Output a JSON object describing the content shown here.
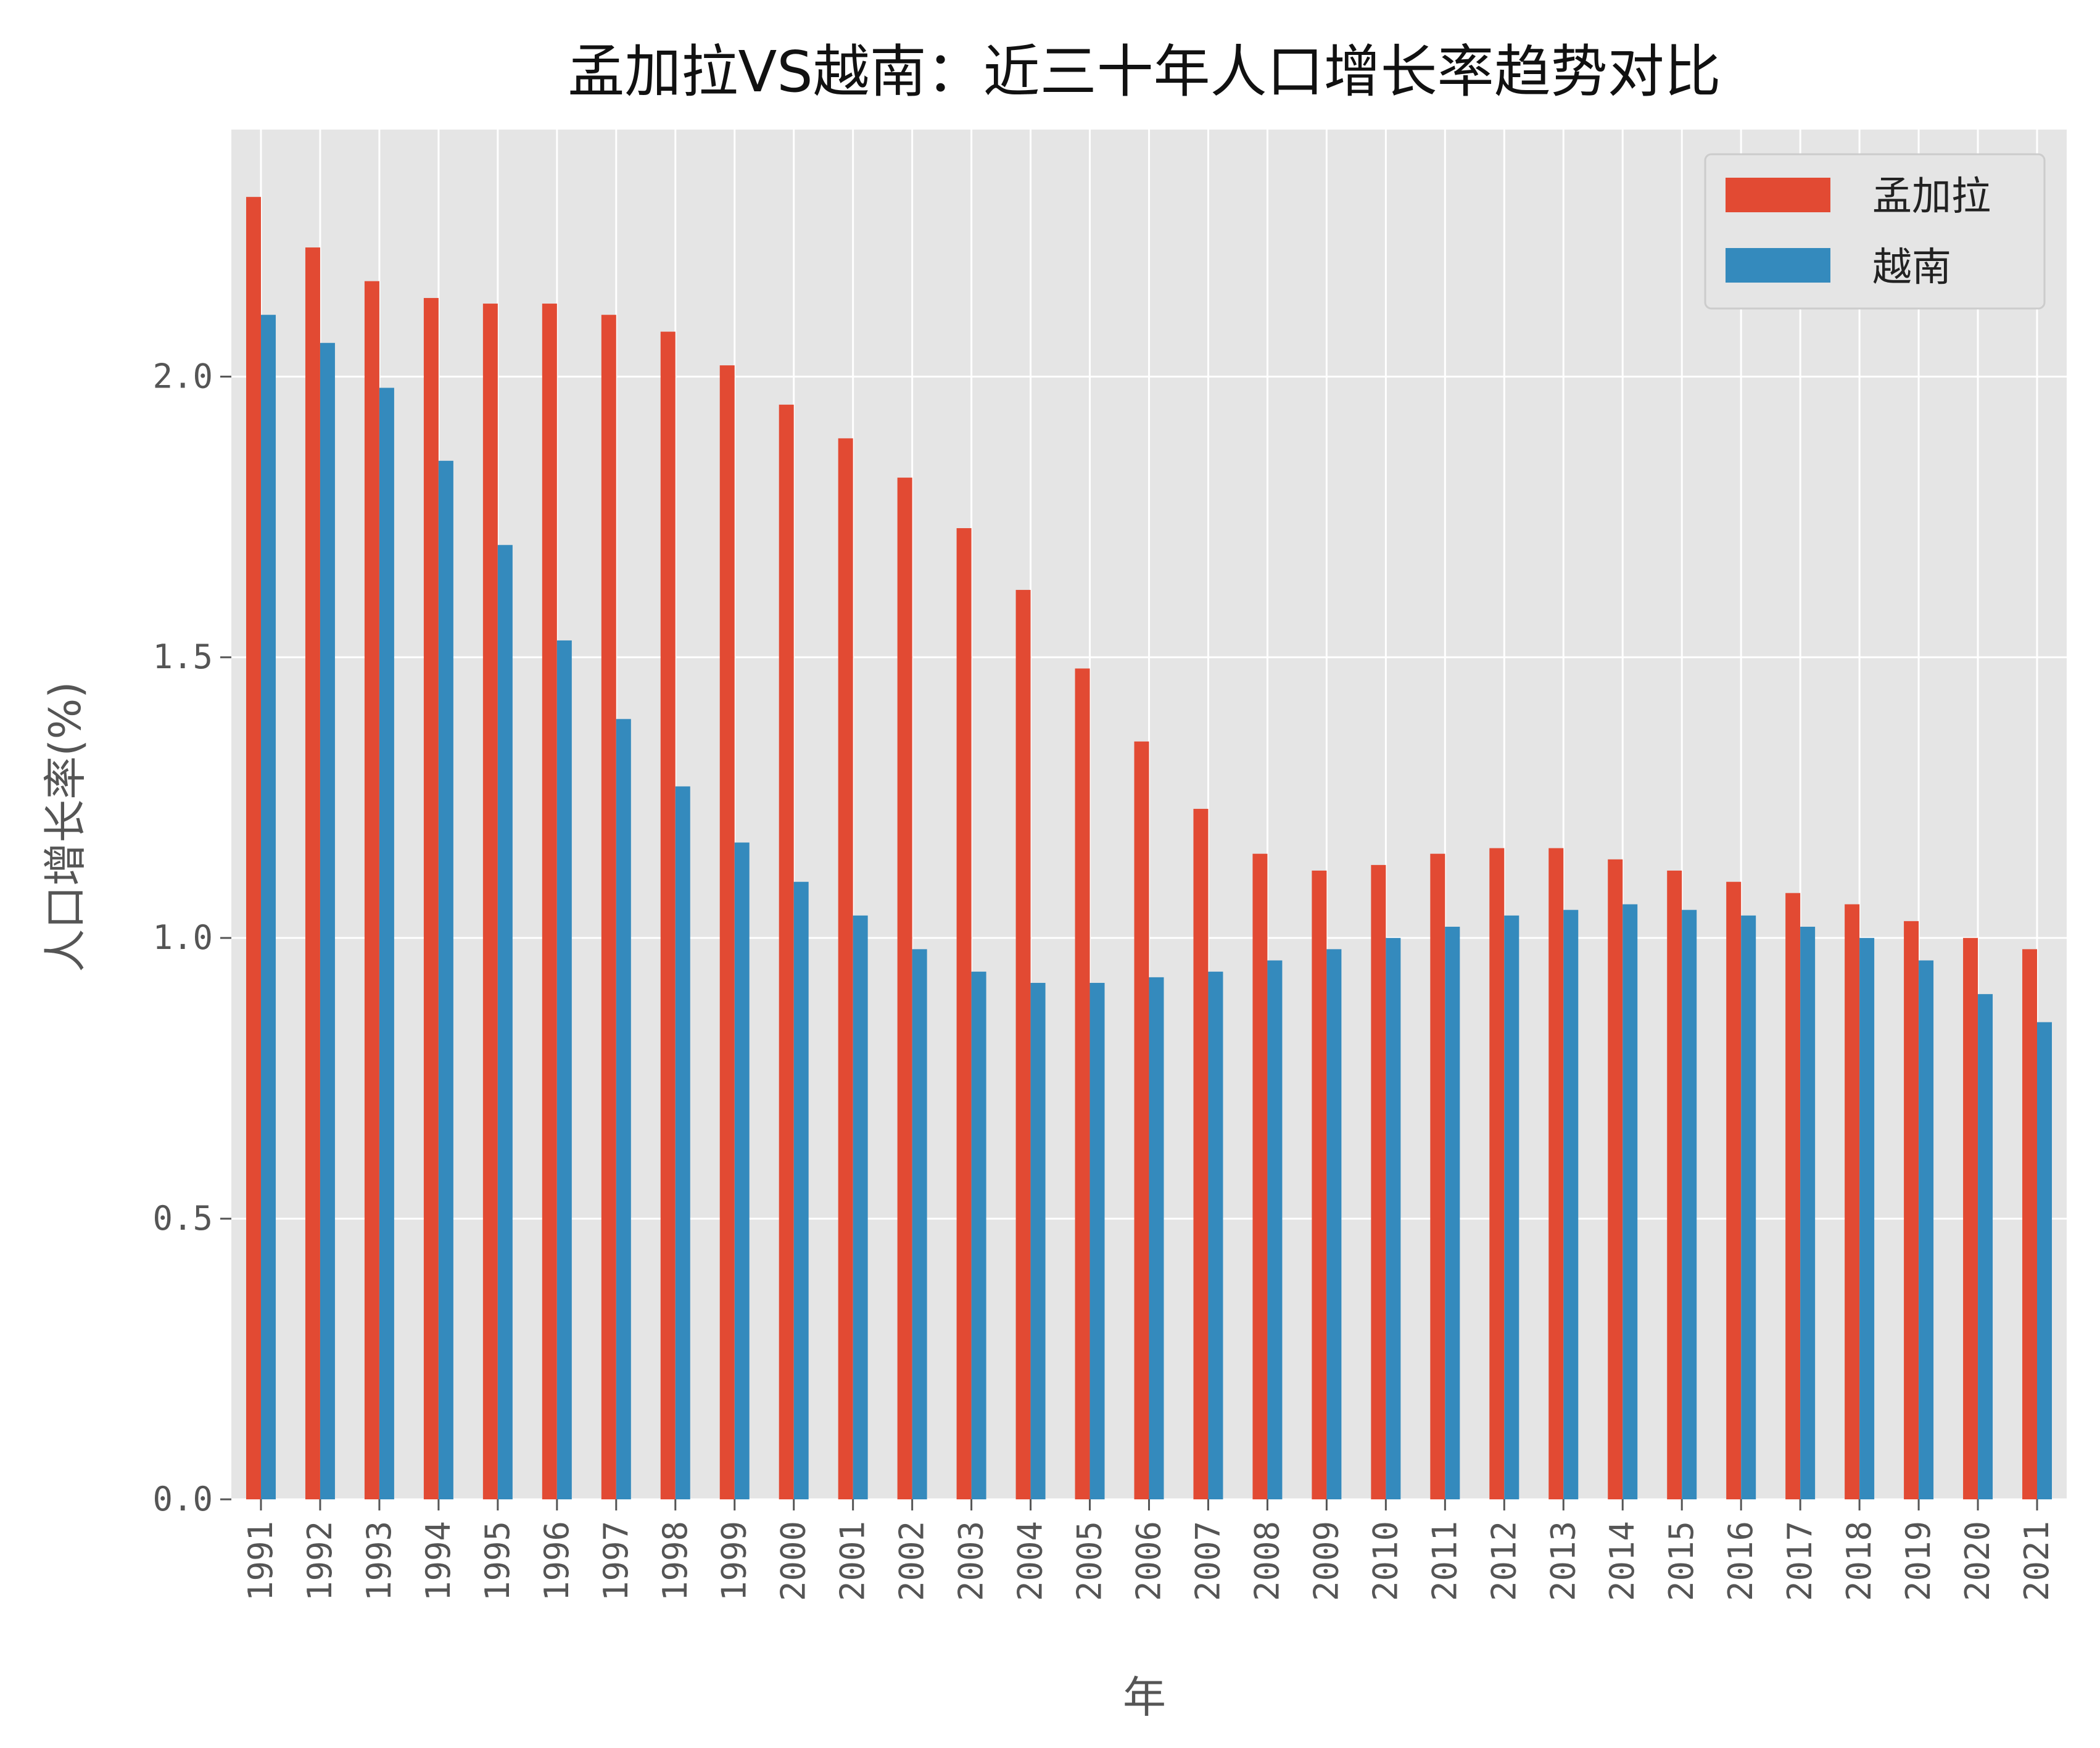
{
  "chart_data": {
    "type": "bar",
    "title": "孟加拉VS越南：近三十年人口增长率趋势对比",
    "xlabel": "年",
    "ylabel": "人口增长率(%)",
    "ylim": [
      0,
      2.44
    ],
    "yticks": [
      "0.0",
      "0.5",
      "1.0",
      "1.5",
      "2.0"
    ],
    "grid": true,
    "legend_position": "top-right",
    "categories": [
      "1991",
      "1992",
      "1993",
      "1994",
      "1995",
      "1996",
      "1997",
      "1998",
      "1999",
      "2000",
      "2001",
      "2002",
      "2003",
      "2004",
      "2005",
      "2006",
      "2007",
      "2008",
      "2009",
      "2010",
      "2011",
      "2012",
      "2013",
      "2014",
      "2015",
      "2016",
      "2017",
      "2018",
      "2019",
      "2020",
      "2021"
    ],
    "series": [
      {
        "name": "孟加拉",
        "color": "#e24a33",
        "values": [
          2.32,
          2.23,
          2.17,
          2.14,
          2.13,
          2.13,
          2.11,
          2.08,
          2.02,
          1.95,
          1.89,
          1.82,
          1.73,
          1.62,
          1.48,
          1.35,
          1.23,
          1.15,
          1.12,
          1.13,
          1.15,
          1.16,
          1.16,
          1.14,
          1.12,
          1.1,
          1.08,
          1.06,
          1.03,
          1.0,
          0.98
        ]
      },
      {
        "name": "越南",
        "color": "#348abd",
        "values": [
          2.11,
          2.06,
          1.98,
          1.85,
          1.7,
          1.53,
          1.39,
          1.27,
          1.17,
          1.1,
          1.04,
          0.98,
          0.94,
          0.92,
          0.92,
          0.93,
          0.94,
          0.96,
          0.98,
          1.0,
          1.02,
          1.04,
          1.05,
          1.06,
          1.05,
          1.04,
          1.02,
          1.0,
          0.96,
          0.9,
          0.85
        ]
      }
    ]
  },
  "colors": {
    "plot_background": "#e5e5e5",
    "grid": "#ffffff",
    "axis_text": "#555555"
  }
}
